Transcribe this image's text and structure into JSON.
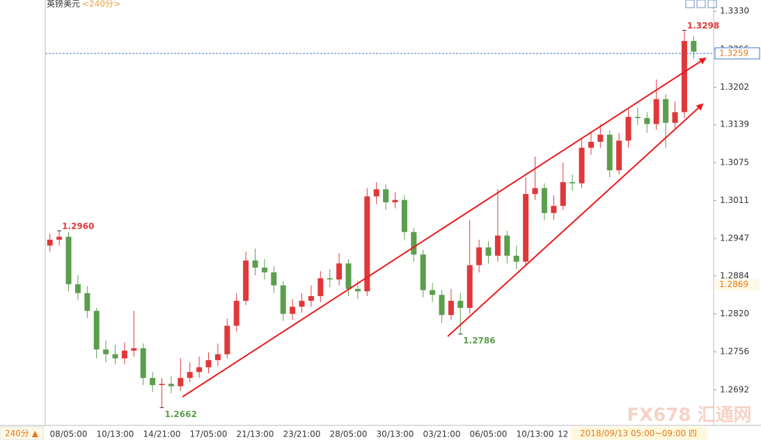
{
  "chart_data": {
    "type": "candlestick",
    "title": "英镑美元",
    "period": "<240分>",
    "period_button": "240分 ▲",
    "cursor_time": "2018/09/13 05:00~09:00 四",
    "watermark": "FX678 汇通网",
    "ylim": [
      1.2632,
      1.3349
    ],
    "yticks": [
      {
        "value": 1.333,
        "label": "1.3330"
      },
      1.3266,
      {
        "value": 1.3202,
        "label": "1.3202"
      },
      1.3139,
      1.3075,
      1.3011,
      1.2947,
      1.2884,
      {
        "value": 1.282,
        "label": "1.2820"
      },
      1.2756,
      1.2692
    ],
    "last_price": 1.3259,
    "marker_price": 1.2869,
    "up_color": "#e0383a",
    "down_color": "#5b9e4d",
    "categories": [
      null,
      null,
      "08/05:00",
      null,
      null,
      null,
      null,
      "10/13:00",
      null,
      null,
      null,
      null,
      "14/21:00",
      null,
      null,
      null,
      null,
      "17/05:00",
      null,
      null,
      null,
      null,
      "21/13:00",
      null,
      null,
      null,
      null,
      "23/21:00",
      null,
      null,
      null,
      null,
      "28/05:00",
      null,
      null,
      null,
      null,
      "30/13:00",
      null,
      null,
      null,
      null,
      "03/21:00",
      null,
      null,
      null,
      null,
      "06/05:00",
      null,
      null,
      null,
      null,
      "10/13:00",
      null,
      null,
      "12",
      null,
      null,
      null,
      null,
      null,
      null,
      null,
      null,
      null,
      null,
      null,
      null,
      null,
      null
    ],
    "open": [
      1.2935,
      1.2945,
      1.295,
      1.287,
      1.2855,
      1.2825,
      1.276,
      1.2752,
      1.2745,
      1.2758,
      1.2762,
      1.2712,
      1.27,
      1.2702,
      1.2698,
      1.2712,
      1.2722,
      1.273,
      1.2742,
      1.2752,
      1.28,
      1.2842,
      1.291,
      1.2898,
      1.289,
      1.2868,
      1.282,
      1.2832,
      1.2842,
      1.285,
      1.288,
      1.2878,
      1.2905,
      1.2862,
      1.2858,
      1.3018,
      1.303,
      1.3008,
      1.3012,
      1.2958,
      1.292,
      1.286,
      1.2852,
      1.2818,
      1.2842,
      1.283,
      1.2902,
      1.2932,
      1.2918,
      1.2952,
      1.2918,
      1.2908,
      1.3022,
      1.3032,
      1.299,
      1.3002,
      1.3042,
      1.304,
      1.31,
      1.311,
      1.3122,
      1.3062,
      1.3112,
      1.3152,
      1.315,
      1.314,
      1.3182,
      1.3142,
      1.316,
      1.328
    ],
    "high": [
      1.2955,
      1.296,
      1.2958,
      1.2885,
      1.2867,
      1.283,
      1.2775,
      1.2768,
      1.2772,
      1.2825,
      1.277,
      1.2722,
      1.2712,
      1.2715,
      1.2745,
      1.2738,
      1.2748,
      1.2755,
      1.277,
      1.2812,
      1.2855,
      1.2925,
      1.293,
      1.2912,
      1.29,
      1.2875,
      1.2845,
      1.2855,
      1.2868,
      1.2892,
      1.2895,
      1.2922,
      1.2912,
      1.2875,
      1.3032,
      1.3042,
      1.3038,
      1.3025,
      1.302,
      1.2965,
      1.2928,
      1.2872,
      1.286,
      1.2862,
      1.2855,
      1.2978,
      1.2945,
      1.2942,
      1.303,
      1.296,
      1.2935,
      1.305,
      1.3085,
      1.304,
      1.302,
      1.3075,
      1.3055,
      1.3115,
      1.3125,
      1.314,
      1.313,
      1.3125,
      1.3165,
      1.3168,
      1.316,
      1.3215,
      1.319,
      1.3178,
      1.3298,
      1.3288
    ],
    "low": [
      1.2925,
      1.2935,
      1.2858,
      1.2843,
      1.2813,
      1.2745,
      1.2738,
      1.2735,
      1.2735,
      1.2748,
      1.27,
      1.2688,
      1.2662,
      1.2686,
      1.269,
      1.2705,
      1.2712,
      1.272,
      1.2732,
      1.2745,
      1.279,
      1.2835,
      1.2885,
      1.2878,
      1.2855,
      1.2808,
      1.281,
      1.2822,
      1.2832,
      1.284,
      1.2865,
      1.2868,
      1.285,
      1.2845,
      1.285,
      1.3005,
      1.2995,
      1.2998,
      1.2945,
      1.2908,
      1.2848,
      1.284,
      1.2805,
      1.281,
      1.2786,
      1.282,
      1.289,
      1.2905,
      1.2908,
      1.2905,
      1.2895,
      1.29,
      1.3012,
      1.2978,
      1.2978,
      1.2995,
      1.3028,
      1.3032,
      1.3088,
      1.31,
      1.305,
      1.3055,
      1.31,
      1.3138,
      1.3125,
      1.313,
      1.31,
      1.3132,
      1.315,
      1.325
    ],
    "close": [
      1.2945,
      1.295,
      1.287,
      1.2855,
      1.2825,
      1.276,
      1.2752,
      1.2745,
      1.2758,
      1.2762,
      1.2712,
      1.27,
      1.2702,
      1.2698,
      1.2712,
      1.2722,
      1.273,
      1.2742,
      1.2752,
      1.28,
      1.2842,
      1.291,
      1.2898,
      1.289,
      1.2868,
      1.282,
      1.2832,
      1.2842,
      1.285,
      1.288,
      1.2878,
      1.2905,
      1.2862,
      1.2858,
      1.3018,
      1.303,
      1.3008,
      1.3012,
      1.2958,
      1.292,
      1.286,
      1.2852,
      1.2818,
      1.2842,
      1.283,
      1.2902,
      1.2932,
      1.2918,
      1.2952,
      1.2918,
      1.2908,
      1.3022,
      1.3032,
      1.299,
      1.3002,
      1.3042,
      1.304,
      1.31,
      1.311,
      1.3122,
      1.3062,
      1.3112,
      1.3152,
      1.315,
      1.314,
      1.3182,
      1.3142,
      1.316,
      1.328,
      1.3262
    ],
    "high_labels": [
      null,
      "1.2960",
      null,
      null,
      null,
      null,
      null,
      null,
      null,
      null,
      null,
      null,
      null,
      null,
      null,
      null,
      null,
      null,
      null,
      null,
      null,
      null,
      null,
      null,
      null,
      null,
      null,
      null,
      null,
      null,
      null,
      null,
      null,
      null,
      null,
      null,
      null,
      null,
      null,
      null,
      null,
      null,
      null,
      null,
      null,
      null,
      null,
      null,
      null,
      null,
      null,
      null,
      null,
      null,
      null,
      null,
      null,
      null,
      null,
      null,
      null,
      null,
      null,
      null,
      null,
      null,
      null,
      null,
      "1.3298",
      null
    ],
    "low_labels": [
      null,
      null,
      null,
      null,
      null,
      null,
      null,
      null,
      null,
      null,
      null,
      null,
      "1.2662",
      null,
      null,
      null,
      null,
      null,
      null,
      null,
      null,
      null,
      null,
      null,
      null,
      null,
      null,
      null,
      null,
      null,
      null,
      null,
      null,
      null,
      null,
      null,
      null,
      null,
      null,
      null,
      null,
      null,
      null,
      null,
      "1.2786",
      null,
      null,
      null,
      null,
      null,
      null,
      null,
      null,
      null,
      null,
      null,
      null,
      null,
      null,
      null,
      null,
      null,
      null,
      null,
      null,
      null,
      null,
      null,
      null,
      null
    ]
  }
}
